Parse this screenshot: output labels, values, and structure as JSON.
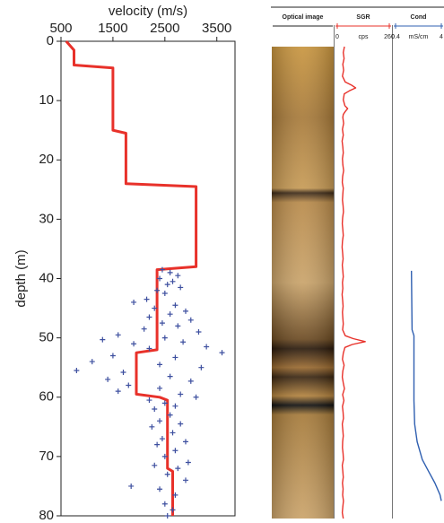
{
  "chart_data": [
    {
      "type": "line",
      "xlabel": "velocity (m/s)",
      "ylabel": "depth (m)",
      "x_axis": "top",
      "y_inverted": true,
      "xlim": [
        500,
        3850
      ],
      "xticks": [
        500,
        1500,
        2500,
        3500
      ],
      "ylim": [
        0,
        80
      ],
      "yticks": [
        0,
        10,
        20,
        30,
        40,
        50,
        60,
        70,
        80
      ],
      "series": [
        {
          "color": "#e8312a",
          "marker": "none",
          "x": [
            600,
            750,
            750,
            1500,
            1500,
            1750,
            1750,
            3100,
            3100,
            2350,
            2350,
            1950,
            1950,
            2400,
            2550,
            2550,
            2650,
            2650
          ],
          "y": [
            0,
            1.5,
            4,
            4.5,
            15,
            15.5,
            24,
            24.5,
            38,
            38.5,
            52,
            52.5,
            59.5,
            60,
            60.5,
            72,
            72.5,
            80
          ]
        },
        {
          "color": "#3d4f9f",
          "marker": "+",
          "x": [
            2450,
            2600,
            2750,
            2400,
            2650,
            2550,
            2800,
            2350,
            2500,
            2150,
            1900,
            2700,
            2300,
            2900,
            2600,
            2200,
            3000,
            2450,
            2750,
            2100,
            3150,
            1600,
            2500,
            1300,
            2850,
            1900,
            3300,
            2200,
            3600,
            1500,
            2700,
            1100,
            2400,
            3200,
            800,
            1700,
            2600,
            1400,
            3000,
            1800,
            2400,
            1600,
            2800,
            3100,
            2200,
            2500,
            2700,
            2300,
            2600,
            2400,
            2800,
            2250,
            2650,
            2450,
            2900,
            2350,
            2700,
            2500,
            2950,
            2300,
            2750,
            1850,
            2550,
            2900,
            2400,
            2700,
            2500,
            2650,
            2550
          ],
          "y": [
            38.5,
            39,
            39.5,
            40,
            40.5,
            41,
            41.5,
            42,
            42.5,
            43.5,
            44,
            44.5,
            45,
            45.5,
            46,
            46.5,
            47,
            47.5,
            48,
            48.5,
            49,
            49.5,
            50,
            50.3,
            50.7,
            51,
            51.5,
            51.8,
            52.5,
            53,
            53.3,
            54,
            54.5,
            55,
            55.5,
            55.8,
            56.5,
            57,
            57.3,
            58,
            58.5,
            59,
            59.5,
            60,
            60.5,
            61,
            61.5,
            62,
            63,
            64,
            64.5,
            65,
            66,
            67,
            67.5,
            68,
            69,
            70,
            71,
            71.5,
            72,
            75,
            73,
            74,
            75.5,
            76.5,
            78,
            79,
            80
          ]
        }
      ]
    },
    {
      "type": "log",
      "ylim": [
        0,
        80
      ],
      "tracks": [
        {
          "title": "Optical image"
        },
        {
          "title": "SGR",
          "color": "#e8312a",
          "unit": "cps",
          "xlim": [
            0,
            260
          ],
          "xticks": [
            0,
            260
          ],
          "x": [
            36,
            30,
            34,
            28,
            32,
            26,
            40,
            70,
            92,
            60,
            35,
            30,
            38,
            52,
            40,
            30,
            28,
            32,
            26,
            30,
            24,
            28,
            30,
            26,
            28,
            32,
            27,
            25,
            30,
            28,
            26,
            29,
            31,
            27,
            25,
            28,
            30,
            26,
            24,
            27,
            29,
            25,
            28,
            30,
            26,
            28,
            24,
            27,
            29,
            26,
            28,
            30,
            27,
            40,
            80,
            140,
            75,
            38,
            30,
            26,
            34,
            28,
            25,
            30,
            36,
            27,
            33,
            26,
            29,
            31,
            25,
            28,
            30,
            27,
            26,
            29,
            31,
            25,
            28,
            30,
            26,
            29,
            27,
            31,
            28,
            25,
            30
          ],
          "y": [
            0,
            1,
            2,
            3,
            4,
            5,
            6,
            6.5,
            7,
            7.5,
            8,
            9,
            10,
            10.5,
            11,
            11.5,
            12,
            13,
            14,
            15,
            16,
            17,
            18,
            19,
            20,
            21,
            22,
            23,
            24,
            25,
            26,
            27,
            28,
            29,
            30,
            31,
            32,
            33,
            34,
            35,
            36,
            37,
            38,
            39,
            40,
            41,
            42,
            43,
            44,
            45,
            46,
            47,
            48,
            49,
            49.5,
            50,
            50.5,
            51,
            52,
            53,
            54,
            55,
            56,
            57,
            58,
            59,
            60,
            61,
            62,
            63,
            64,
            65,
            66,
            67,
            68,
            69,
            70,
            71,
            72,
            73,
            74,
            75,
            76,
            77,
            78,
            79,
            80
          ]
        },
        {
          "title": "Cond",
          "color": "#2f5fb0",
          "unit": "mS/cm",
          "xlim": [
            0.4,
            4
          ],
          "xticks": [
            0.4,
            4
          ],
          "x": [
            1.65,
            1.7,
            1.85,
            1.85,
            1.9,
            2.1,
            2.5,
            3.0,
            3.5,
            3.9,
            4
          ],
          "y": [
            38,
            48,
            49,
            60,
            64,
            67,
            70,
            72,
            74,
            76,
            77
          ]
        }
      ]
    }
  ]
}
